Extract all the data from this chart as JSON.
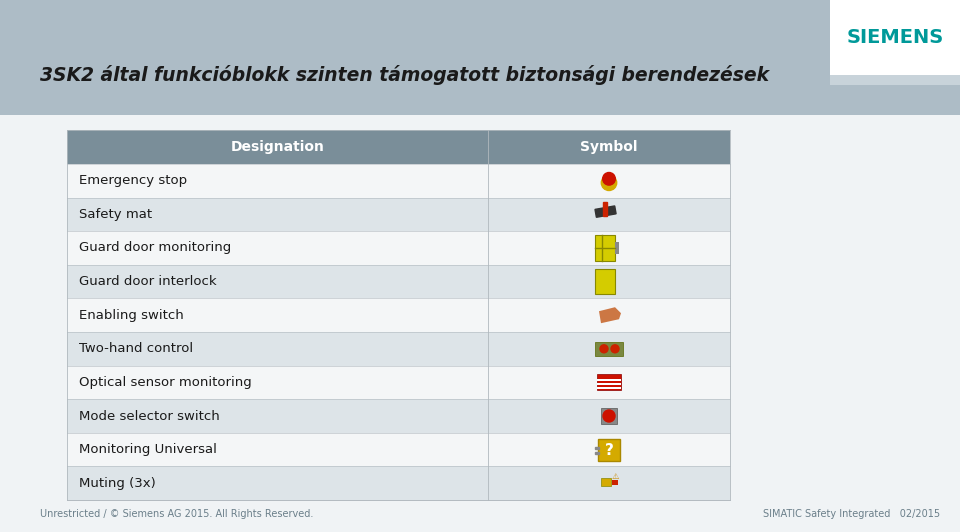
{
  "title": "3SK2 által funkcióblokk szinten támogatott biztonsági berendezések",
  "title_color": "#1a1a1a",
  "title_fontsize": 13.5,
  "background_color": "#adbcc6",
  "content_bg": "#f0f3f5",
  "table_bg": "#ffffff",
  "header_bg": "#7a8e99",
  "header_text_color": "#ffffff",
  "header_label_left": "Designation",
  "header_label_right": "Symbol",
  "rows": [
    {
      "label": "Emergency stop",
      "bg": "#f4f6f7"
    },
    {
      "label": "Safety mat",
      "bg": "#dde4e8"
    },
    {
      "label": "Guard door monitoring",
      "bg": "#f4f6f7"
    },
    {
      "label": "Guard door interlock",
      "bg": "#dde4e8"
    },
    {
      "label": "Enabling switch",
      "bg": "#f4f6f7"
    },
    {
      "label": "Two-hand control",
      "bg": "#dde4e8"
    },
    {
      "label": "Optical sensor monitoring",
      "bg": "#f4f6f7"
    },
    {
      "label": "Mode selector switch",
      "bg": "#dde4e8"
    },
    {
      "label": "Monitoring Universal",
      "bg": "#f4f6f7"
    },
    {
      "label": "Muting (3x)",
      "bg": "#dde4e8"
    }
  ],
  "siemens_text": "SIEMENS",
  "siemens_color": "#009999",
  "siemens_fontsize": 14,
  "logo_box_color": "#ffffff",
  "logo_bar_color": "#c8d3da",
  "footer_left": "Unrestricted / © Siemens AG 2015. All Rights Reserved.",
  "footer_right": "SIMATIC Safety Integrated   02/2015",
  "footer_color": "#6b7f8a",
  "footer_fontsize": 7
}
